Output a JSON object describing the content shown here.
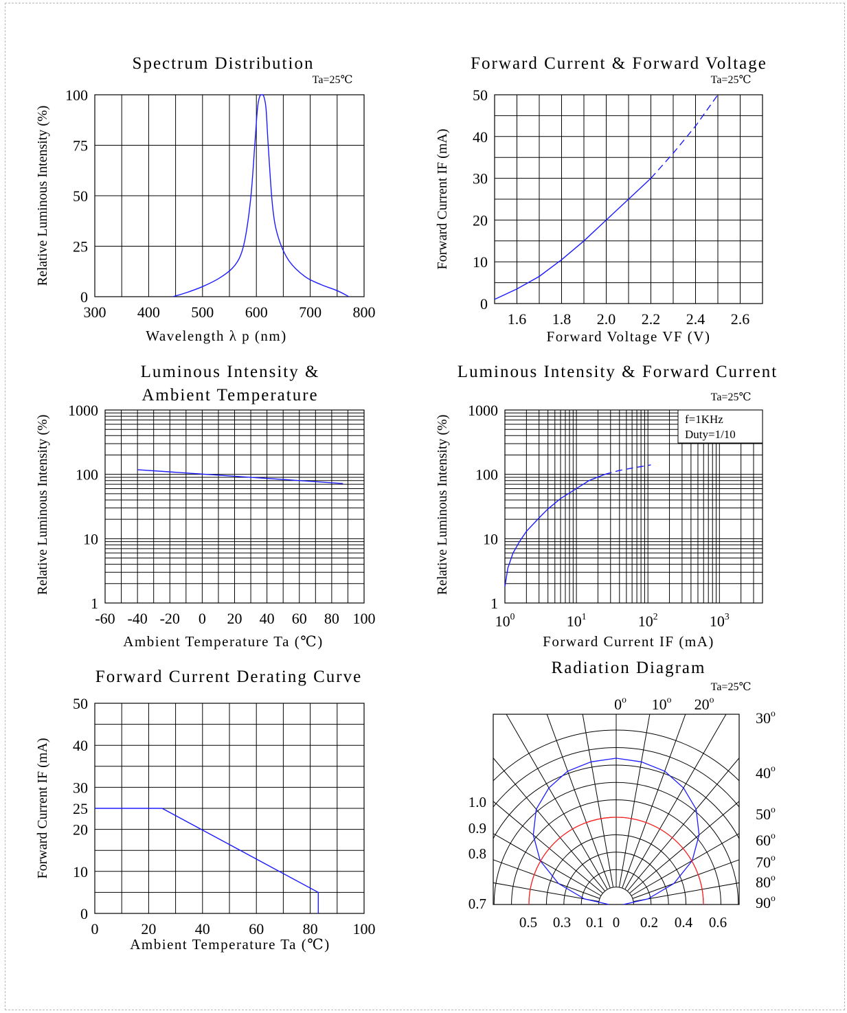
{
  "colors": {
    "curve": "#1a1aff",
    "ref": "#ff2020",
    "grid": "#000000"
  },
  "chart_data": [
    {
      "id": "spectrum",
      "type": "line",
      "title": "Spectrum Distribution",
      "note": "Ta=25℃",
      "xlabel": "Wavelength  λ p (nm)",
      "ylabel": "Relative Luminous Intensity (%)",
      "xlim": [
        300,
        800
      ],
      "ylim": [
        0,
        100
      ],
      "xticks": [
        300,
        400,
        500,
        600,
        700,
        800
      ],
      "yticks": [
        0,
        25,
        50,
        75,
        100
      ],
      "xtick_labels": [
        "300",
        "400",
        "500",
        "600",
        "700",
        "800"
      ],
      "ytick_labels": [
        "0",
        "25",
        "50",
        "75",
        "100"
      ],
      "grid": true,
      "series": [
        {
          "x": [
            445,
            470,
            500,
            530,
            555,
            570,
            580,
            590,
            597,
            602,
            606,
            610,
            614,
            618,
            622,
            630,
            640,
            660,
            690,
            720,
            750,
            772
          ],
          "y": [
            0,
            2,
            5,
            9,
            14,
            20,
            30,
            50,
            75,
            93,
            99,
            100,
            99,
            93,
            75,
            45,
            30,
            18,
            10,
            6,
            3,
            0
          ]
        }
      ]
    },
    {
      "id": "iv",
      "type": "line",
      "title": "Forward Current & Forward Voltage",
      "note": "Ta=25℃",
      "xlabel": "Forward Voltage  VF (V)",
      "ylabel": "Forward Current IF (mA)",
      "xlim": [
        1.5,
        2.7
      ],
      "ylim": [
        0,
        50
      ],
      "xticks": [
        1.6,
        1.8,
        2.0,
        2.2,
        2.4,
        2.6
      ],
      "yticks": [
        0,
        10,
        20,
        30,
        40,
        50
      ],
      "xtick_labels": [
        "1.6",
        "1.8",
        "2.0",
        "2.2",
        "2.4",
        "2.6"
      ],
      "ytick_labels": [
        "0",
        "10",
        "20",
        "30",
        "40",
        "50"
      ],
      "grid": true,
      "series": [
        {
          "style": "solid",
          "x": [
            1.5,
            1.6,
            1.7,
            1.8,
            1.9,
            2.0,
            2.1,
            2.2
          ],
          "y": [
            1,
            3.5,
            6.5,
            10.5,
            15,
            20,
            25,
            30
          ]
        },
        {
          "style": "dashed",
          "x": [
            2.2,
            2.3,
            2.4,
            2.5
          ],
          "y": [
            30,
            36,
            42.5,
            50
          ]
        }
      ]
    },
    {
      "id": "temp-intensity",
      "type": "line",
      "title": [
        "Luminous Intensity &",
        "Ambient Temperature"
      ],
      "xlabel": "Ambient Temperature Ta (℃)",
      "ylabel": "Relative Luminous Intensity (%)",
      "xlim": [
        -60,
        100
      ],
      "ylim": [
        1,
        1000
      ],
      "yscale": "log",
      "xticks": [
        -60,
        -40,
        -20,
        0,
        20,
        40,
        60,
        80,
        100
      ],
      "yticks": [
        1,
        10,
        100,
        1000
      ],
      "xtick_labels": [
        "-60",
        "-40",
        "-20",
        "0",
        "20",
        "40",
        "60",
        "80",
        "100"
      ],
      "ytick_labels": [
        "1",
        "10",
        "100",
        "1000"
      ],
      "grid": true,
      "series": [
        {
          "x": [
            -40,
            87
          ],
          "y": [
            118,
            72
          ]
        }
      ]
    },
    {
      "id": "current-intensity",
      "type": "line",
      "title": "Luminous Intensity & Forward Current",
      "note": "Ta=25℃",
      "legend_box": [
        "f=1KHz",
        "Duty=1/10"
      ],
      "xlabel": "Forward Current IF (mA)",
      "ylabel": "Relative Luminous Intensity (%)",
      "xlim": [
        1,
        4000
      ],
      "ylim": [
        1,
        1000
      ],
      "xscale": "log",
      "yscale": "log",
      "xticks": [
        1,
        10,
        100,
        1000
      ],
      "yticks": [
        1,
        10,
        100,
        1000
      ],
      "xtick_labels": [
        {
          "b": "10",
          "e": "0"
        },
        {
          "b": "10",
          "e": "1"
        },
        {
          "b": "10",
          "e": "2"
        },
        {
          "b": "10",
          "e": "3"
        }
      ],
      "ytick_labels": [
        "1",
        "10",
        "100",
        "1000"
      ],
      "grid": true,
      "series": [
        {
          "style": "solid",
          "x": [
            1.0,
            1.1,
            1.3,
            1.6,
            2,
            3,
            4,
            6,
            10,
            15,
            25
          ],
          "y": [
            1.8,
            3.5,
            6,
            9,
            13,
            21,
            29,
            42,
            60,
            80,
            100
          ]
        },
        {
          "style": "dashed",
          "x": [
            25,
            40,
            60,
            80,
            110
          ],
          "y": [
            100,
            115,
            125,
            132,
            140
          ]
        }
      ]
    },
    {
      "id": "derating",
      "type": "line",
      "title": "Forward Current Derating Curve",
      "xlabel": "Ambient Temperature Ta (℃)",
      "ylabel": "Forward Current IF (mA)",
      "xlim": [
        0,
        100
      ],
      "ylim": [
        0,
        50
      ],
      "xticks": [
        0,
        20,
        40,
        60,
        80,
        100
      ],
      "yticks": [
        0,
        10,
        20,
        25,
        30,
        40,
        50
      ],
      "xtick_labels": [
        "0",
        "20",
        "40",
        "60",
        "80",
        "100"
      ],
      "ytick_labels": [
        "0",
        "10",
        "20",
        "25",
        "30",
        "40",
        "50"
      ],
      "grid": true,
      "series": [
        {
          "x": [
            0,
            25,
            83,
            83
          ],
          "y": [
            25,
            25,
            5,
            0
          ]
        }
      ]
    },
    {
      "id": "radiation",
      "type": "polar",
      "title": "Radiation Diagram",
      "note": "Ta=25℃",
      "angle_labels": [
        {
          "b": "0",
          "e": "o"
        },
        {
          "b": "10",
          "e": "o"
        },
        {
          "b": "20",
          "e": "o"
        },
        {
          "b": "30",
          "e": "o"
        },
        {
          "b": "40",
          "e": "o"
        },
        {
          "b": "50",
          "e": "o"
        },
        {
          "b": "60",
          "e": "o"
        },
        {
          "b": "70",
          "e": "o"
        },
        {
          "b": "80",
          "e": "o"
        },
        {
          "b": "90",
          "e": "o"
        }
      ],
      "left_labels": [
        "1.0",
        "0.9",
        "0.8",
        "0.7"
      ],
      "bottom_labels": [
        "0.5",
        "0.3",
        "0.1",
        "0",
        "0.2",
        "0.4",
        "0.6"
      ],
      "series": [
        {
          "name": "",
          "type": "radiation-pattern",
          "angle_deg": [
            0,
            10,
            20,
            30,
            40,
            50,
            60,
            70,
            80,
            90
          ],
          "relative": [
            1.0,
            0.99,
            0.97,
            0.92,
            0.85,
            0.74,
            0.6,
            0.42,
            0.22,
            0.05
          ]
        },
        {
          "type": "reference-circle",
          "relative": 0.5
        }
      ]
    }
  ]
}
